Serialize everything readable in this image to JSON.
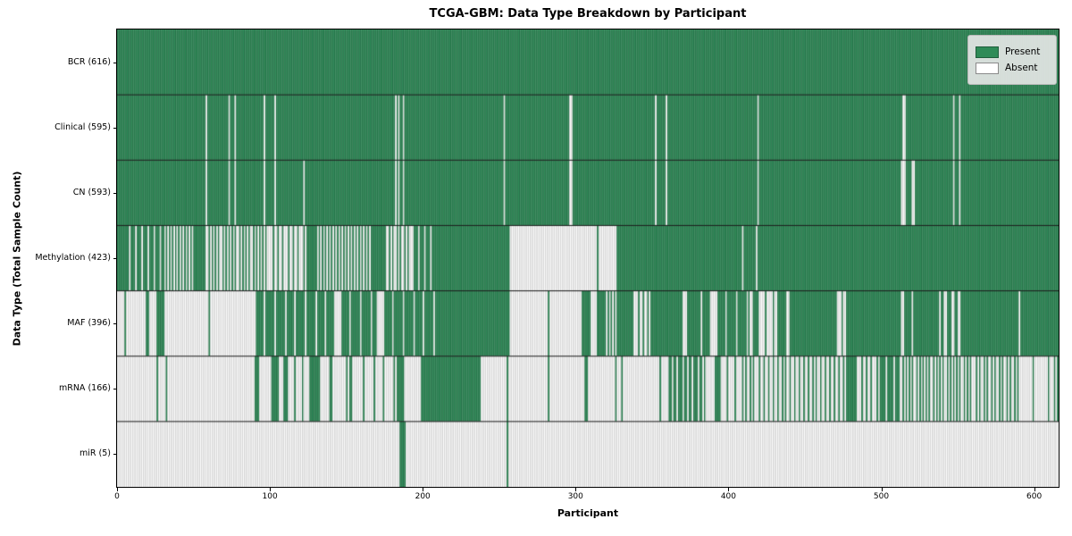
{
  "chart_data": {
    "type": "heatmap",
    "title": "TCGA-GBM: Data Type Breakdown by Participant",
    "xlabel": "Participant",
    "ylabel": "Data Type (Total Sample Count)",
    "legend": [
      "Present",
      "Absent"
    ],
    "legend_position": "upper right",
    "x_range": [
      0,
      616
    ],
    "x_ticks": [
      0,
      100,
      200,
      300,
      400,
      500,
      600
    ],
    "colors": {
      "present": "#2e8b57",
      "present_edge": "#1e5e3c",
      "absent": "#ffffff",
      "absent_edge": "#b2b2b2",
      "separator": "#1a1a1a"
    },
    "value_encoding": "segments are [start_participant, end_participant, presence]; presence 1=Present, 0=Absent, fraction=approximate share of participants present in that span",
    "rows": [
      {
        "label": "BCR (616)",
        "data_type": "BCR",
        "total_samples": 616,
        "segments": [
          [
            0,
            616,
            1
          ]
        ]
      },
      {
        "label": "Clinical (595)",
        "data_type": "Clinical",
        "total_samples": 595,
        "segments": [
          [
            0,
            58,
            1
          ],
          [
            58,
            59,
            0
          ],
          [
            59,
            73,
            1
          ],
          [
            73,
            74,
            0
          ],
          [
            74,
            77,
            1
          ],
          [
            77,
            78,
            0
          ],
          [
            78,
            96,
            1
          ],
          [
            96,
            97,
            0
          ],
          [
            97,
            103,
            1
          ],
          [
            103,
            104,
            0
          ],
          [
            104,
            182,
            1
          ],
          [
            182,
            183,
            0
          ],
          [
            183,
            184,
            1
          ],
          [
            184,
            185,
            0
          ],
          [
            185,
            187,
            1
          ],
          [
            187,
            188,
            0
          ],
          [
            188,
            253,
            1
          ],
          [
            253,
            254,
            0
          ],
          [
            254,
            296,
            1
          ],
          [
            296,
            298,
            0
          ],
          [
            298,
            352,
            1
          ],
          [
            352,
            353,
            0
          ],
          [
            353,
            359,
            1
          ],
          [
            359,
            360,
            0
          ],
          [
            360,
            419,
            1
          ],
          [
            419,
            420,
            0
          ],
          [
            420,
            514,
            1
          ],
          [
            514,
            516,
            0
          ],
          [
            516,
            547,
            1
          ],
          [
            547,
            548,
            0
          ],
          [
            548,
            551,
            1
          ],
          [
            551,
            552,
            0
          ],
          [
            552,
            616,
            1
          ]
        ]
      },
      {
        "label": "CN (593)",
        "data_type": "CN",
        "total_samples": 593,
        "segments": [
          [
            0,
            58,
            1
          ],
          [
            58,
            59,
            0
          ],
          [
            59,
            73,
            1
          ],
          [
            73,
            74,
            0
          ],
          [
            74,
            77,
            1
          ],
          [
            77,
            78,
            0
          ],
          [
            78,
            96,
            1
          ],
          [
            96,
            97,
            0
          ],
          [
            97,
            103,
            1
          ],
          [
            103,
            104,
            0
          ],
          [
            104,
            122,
            1
          ],
          [
            122,
            123,
            0
          ],
          [
            123,
            182,
            1
          ],
          [
            182,
            183,
            0
          ],
          [
            183,
            184,
            1
          ],
          [
            184,
            185,
            0
          ],
          [
            185,
            187,
            1
          ],
          [
            187,
            188,
            0
          ],
          [
            188,
            253,
            1
          ],
          [
            253,
            254,
            0
          ],
          [
            254,
            296,
            1
          ],
          [
            296,
            298,
            0
          ],
          [
            298,
            352,
            1
          ],
          [
            352,
            353,
            0
          ],
          [
            353,
            359,
            1
          ],
          [
            359,
            360,
            0
          ],
          [
            360,
            419,
            1
          ],
          [
            419,
            420,
            0
          ],
          [
            420,
            513,
            1
          ],
          [
            513,
            516,
            0
          ],
          [
            516,
            520,
            1
          ],
          [
            520,
            522,
            0
          ],
          [
            522,
            547,
            1
          ],
          [
            547,
            548,
            0
          ],
          [
            548,
            551,
            1
          ],
          [
            551,
            552,
            0
          ],
          [
            552,
            616,
            1
          ]
        ]
      },
      {
        "label": "Methylation (423)",
        "data_type": "Methylation",
        "total_samples": 423,
        "segments": [
          [
            0,
            8,
            1
          ],
          [
            8,
            31,
            0.75
          ],
          [
            31,
            50,
            0.5
          ],
          [
            50,
            58,
            1
          ],
          [
            58,
            99,
            0.45
          ],
          [
            99,
            124,
            0.3
          ],
          [
            124,
            131,
            1
          ],
          [
            131,
            167,
            0.5
          ],
          [
            167,
            176,
            1
          ],
          [
            176,
            193,
            0.4
          ],
          [
            193,
            208,
            0.75
          ],
          [
            208,
            257,
            1
          ],
          [
            257,
            314,
            0
          ],
          [
            314,
            315,
            1
          ],
          [
            315,
            327,
            0
          ],
          [
            327,
            409,
            1
          ],
          [
            409,
            410,
            0
          ],
          [
            410,
            418,
            1
          ],
          [
            418,
            419,
            0
          ],
          [
            419,
            616,
            1
          ]
        ]
      },
      {
        "label": "MAF (396)",
        "data_type": "MAF",
        "total_samples": 396,
        "segments": [
          [
            0,
            5,
            0
          ],
          [
            5,
            6,
            1
          ],
          [
            6,
            19,
            0
          ],
          [
            19,
            21,
            1
          ],
          [
            21,
            26,
            0
          ],
          [
            26,
            31,
            1
          ],
          [
            31,
            60,
            0
          ],
          [
            60,
            61,
            1
          ],
          [
            61,
            90,
            0
          ],
          [
            90,
            142,
            0.85
          ],
          [
            142,
            146,
            0
          ],
          [
            146,
            170,
            0.85
          ],
          [
            170,
            174,
            0
          ],
          [
            174,
            208,
            0.85
          ],
          [
            208,
            257,
            1
          ],
          [
            257,
            282,
            0
          ],
          [
            282,
            283,
            1
          ],
          [
            283,
            304,
            0
          ],
          [
            304,
            310,
            1
          ],
          [
            310,
            314,
            0
          ],
          [
            314,
            320,
            1
          ],
          [
            320,
            328,
            0.5
          ],
          [
            328,
            338,
            1
          ],
          [
            338,
            349,
            0.3
          ],
          [
            349,
            370,
            1
          ],
          [
            370,
            372,
            0
          ],
          [
            372,
            388,
            0.9
          ],
          [
            388,
            392,
            0
          ],
          [
            392,
            414,
            0.85
          ],
          [
            414,
            416,
            0
          ],
          [
            416,
            420,
            1
          ],
          [
            420,
            432,
            0.2
          ],
          [
            432,
            438,
            1
          ],
          [
            438,
            440,
            0
          ],
          [
            440,
            471,
            1
          ],
          [
            471,
            477,
            0.3
          ],
          [
            477,
            513,
            1
          ],
          [
            513,
            515,
            0
          ],
          [
            515,
            520,
            1
          ],
          [
            520,
            521,
            0
          ],
          [
            521,
            538,
            1
          ],
          [
            538,
            539,
            0
          ],
          [
            539,
            541,
            1
          ],
          [
            541,
            543,
            0
          ],
          [
            543,
            546,
            1
          ],
          [
            546,
            548,
            0
          ],
          [
            548,
            550,
            1
          ],
          [
            550,
            552,
            0
          ],
          [
            552,
            590,
            1
          ],
          [
            590,
            591,
            0
          ],
          [
            591,
            616,
            1
          ]
        ]
      },
      {
        "label": "mRNA (166)",
        "data_type": "mRNA",
        "total_samples": 166,
        "segments": [
          [
            0,
            26,
            0
          ],
          [
            26,
            27,
            1
          ],
          [
            27,
            32,
            0
          ],
          [
            32,
            33,
            1
          ],
          [
            33,
            90,
            0
          ],
          [
            90,
            93,
            1
          ],
          [
            93,
            101,
            0
          ],
          [
            101,
            106,
            1
          ],
          [
            106,
            109,
            0
          ],
          [
            109,
            112,
            1
          ],
          [
            112,
            127,
            0.2
          ],
          [
            127,
            133,
            1
          ],
          [
            133,
            139,
            0
          ],
          [
            139,
            141,
            1
          ],
          [
            141,
            149,
            0
          ],
          [
            149,
            155,
            0.6
          ],
          [
            155,
            183,
            0.15
          ],
          [
            183,
            188,
            1
          ],
          [
            188,
            199,
            0
          ],
          [
            199,
            238,
            1
          ],
          [
            238,
            255,
            0
          ],
          [
            255,
            256,
            1
          ],
          [
            256,
            282,
            0
          ],
          [
            282,
            283,
            1
          ],
          [
            283,
            306,
            0
          ],
          [
            306,
            308,
            1
          ],
          [
            308,
            326,
            0
          ],
          [
            326,
            327,
            1
          ],
          [
            327,
            330,
            0
          ],
          [
            330,
            331,
            1
          ],
          [
            331,
            355,
            0
          ],
          [
            355,
            356,
            1
          ],
          [
            356,
            360,
            0
          ],
          [
            360,
            385,
            0.7
          ],
          [
            385,
            391,
            0
          ],
          [
            391,
            395,
            1
          ],
          [
            395,
            407,
            0.2
          ],
          [
            407,
            418,
            0.4
          ],
          [
            418,
            478,
            0.35
          ],
          [
            478,
            484,
            1
          ],
          [
            484,
            498,
            0.3
          ],
          [
            498,
            512,
            0.8
          ],
          [
            512,
            560,
            0.45
          ],
          [
            560,
            590,
            0.4
          ],
          [
            590,
            612,
            0.1
          ],
          [
            612,
            616,
            0.5
          ]
        ]
      },
      {
        "label": "miR (5)",
        "data_type": "miR",
        "total_samples": 5,
        "segments": [
          [
            0,
            185,
            0
          ],
          [
            185,
            189,
            1
          ],
          [
            189,
            255,
            0
          ],
          [
            255,
            256,
            1
          ],
          [
            256,
            616,
            0
          ]
        ]
      }
    ]
  }
}
